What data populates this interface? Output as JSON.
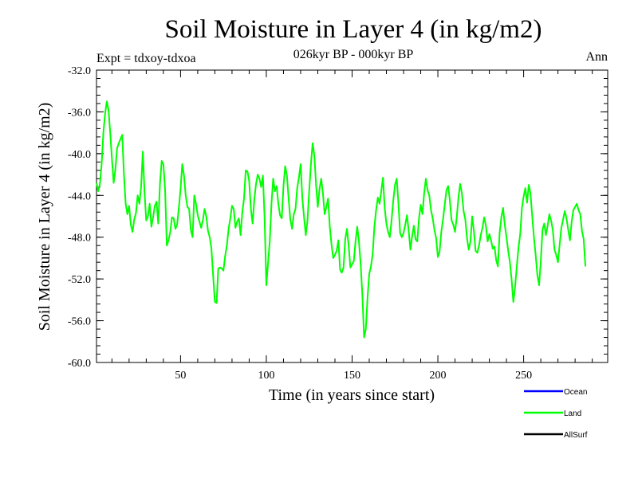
{
  "chart_data": {
    "type": "line",
    "title": "Soil Moisture in Layer 4 (in kg/m2)",
    "subtitle": "026kyr BP - 000kyr BP",
    "experiment_label": "Expt = tdxoy-tdxoa",
    "season_label": "Ann",
    "xlabel": "Time (in years since start)",
    "ylabel": "Soil Moisture in Layer 4 (in kg/m2)",
    "xlim": [
      1,
      299
    ],
    "ylim": [
      -60.0,
      -32.0
    ],
    "x_ticks": [
      50,
      100,
      150,
      200,
      250
    ],
    "x_tick_labels": [
      "50",
      "100",
      "150",
      "200",
      "250"
    ],
    "y_ticks": [
      -32,
      -36,
      -40,
      -44,
      -48,
      -52,
      -56,
      -60
    ],
    "y_tick_labels": [
      "-32.0",
      "-36.0",
      "-40.0",
      "-44.0",
      "-48.0",
      "-52.0",
      "-56.0",
      "-60.0"
    ],
    "grid": false,
    "legend_position": "bottom-right",
    "legend": [
      {
        "name": "Ocean",
        "color": "#0000ff"
      },
      {
        "name": "Land",
        "color": "#00ff00"
      },
      {
        "name": "AllSurf",
        "color": "#000000"
      }
    ],
    "series": [
      {
        "name": "Land",
        "color": "#00ff00",
        "x_start": 1,
        "x_step": 1,
        "values": [
          -42.8,
          -43.6,
          -42.9,
          -41.0,
          -38.0,
          -36.2,
          -35.0,
          -35.8,
          -38.0,
          -40.5,
          -42.8,
          -41.5,
          -39.5,
          -39.0,
          -38.6,
          -38.2,
          -42.0,
          -44.8,
          -45.8,
          -45.0,
          -46.8,
          -47.5,
          -46.3,
          -45.7,
          -44.0,
          -44.8,
          -43.2,
          -39.8,
          -43.7,
          -46.4,
          -46.0,
          -44.8,
          -47.0,
          -46.1,
          -45.0,
          -44.6,
          -46.7,
          -42.9,
          -40.7,
          -41.0,
          -43.5,
          -48.8,
          -48.3,
          -47.5,
          -46.1,
          -46.2,
          -47.2,
          -46.8,
          -45.2,
          -43.4,
          -41.0,
          -42.1,
          -44.0,
          -45.1,
          -45.3,
          -47.3,
          -48.0,
          -44.0,
          -44.8,
          -45.9,
          -46.5,
          -47.1,
          -46.4,
          -45.3,
          -46.0,
          -47.4,
          -48.0,
          -49.1,
          -51.7,
          -54.2,
          -54.3,
          -51.0,
          -50.9,
          -51.0,
          -51.2,
          -49.8,
          -48.8,
          -47.2,
          -46.2,
          -45.0,
          -45.3,
          -47.1,
          -46.5,
          -46.2,
          -47.8,
          -45.6,
          -44.3,
          -41.6,
          -41.7,
          -42.6,
          -45.3,
          -46.7,
          -44.4,
          -42.9,
          -42.0,
          -42.4,
          -43.2,
          -42.1,
          -46.2,
          -52.6,
          -50.5,
          -48.4,
          -44.8,
          -42.4,
          -43.6,
          -43.1,
          -44.8,
          -45.9,
          -46.2,
          -43.1,
          -41.2,
          -42.1,
          -44.3,
          -46.3,
          -47.2,
          -45.8,
          -45.3,
          -43.3,
          -42.3,
          -41.0,
          -44.3,
          -46.1,
          -47.8,
          -46.4,
          -43.6,
          -41.0,
          -39.0,
          -40.2,
          -43.0,
          -45.1,
          -43.4,
          -42.4,
          -43.8,
          -45.8,
          -45.1,
          -44.3,
          -47.0,
          -48.7,
          -50.0,
          -49.7,
          -49.3,
          -48.3,
          -51.1,
          -51.4,
          -50.9,
          -48.2,
          -47.2,
          -48.8,
          -50.9,
          -50.6,
          -50.3,
          -48.4,
          -47.0,
          -48.4,
          -50.6,
          -53.6,
          -57.6,
          -56.8,
          -53.8,
          -51.5,
          -50.8,
          -49.6,
          -47.0,
          -45.4,
          -44.2,
          -44.8,
          -43.6,
          -42.3,
          -45.2,
          -46.7,
          -47.5,
          -48.0,
          -46.4,
          -44.5,
          -43.0,
          -42.4,
          -44.7,
          -47.6,
          -48.0,
          -47.6,
          -46.8,
          -45.9,
          -47.4,
          -49.2,
          -47.9,
          -46.9,
          -48.2,
          -48.4,
          -46.2,
          -44.9,
          -45.8,
          -43.8,
          -42.4,
          -43.5,
          -44.0,
          -45.4,
          -46.2,
          -47.3,
          -48.1,
          -49.9,
          -49.4,
          -47.5,
          -46.3,
          -44.9,
          -43.5,
          -43.1,
          -44.5,
          -46.4,
          -46.8,
          -47.5,
          -46.1,
          -44.2,
          -42.9,
          -43.8,
          -45.5,
          -46.3,
          -48.1,
          -49.2,
          -48.4,
          -46.0,
          -47.4,
          -49.3,
          -49.5,
          -48.8,
          -47.8,
          -47.1,
          -46.1,
          -46.9,
          -48.4,
          -47.7,
          -48.3,
          -49.1,
          -48.9,
          -50.2,
          -50.8,
          -47.6,
          -46.1,
          -45.2,
          -46.8,
          -48.0,
          -49.3,
          -50.4,
          -52.1,
          -54.2,
          -52.8,
          -50.8,
          -49.0,
          -47.7,
          -45.2,
          -44.1,
          -43.3,
          -44.7,
          -43.0,
          -43.8,
          -46.0,
          -48.0,
          -49.7,
          -51.6,
          -52.6,
          -50.3,
          -47.3,
          -46.7,
          -47.8,
          -46.9,
          -45.8,
          -46.4,
          -47.3,
          -49.2,
          -49.7,
          -50.4,
          -48.7,
          -47.1,
          -46.3,
          -45.5,
          -46.2,
          -47.3,
          -48.3,
          -46.5,
          -45.4,
          -45.1,
          -44.8,
          -45.4,
          -45.8,
          -47.4,
          -48.2,
          -50.8
        ]
      },
      {
        "name": "Ocean",
        "color": "#0000ff",
        "values": []
      },
      {
        "name": "AllSurf",
        "color": "#000000",
        "values": []
      }
    ]
  }
}
